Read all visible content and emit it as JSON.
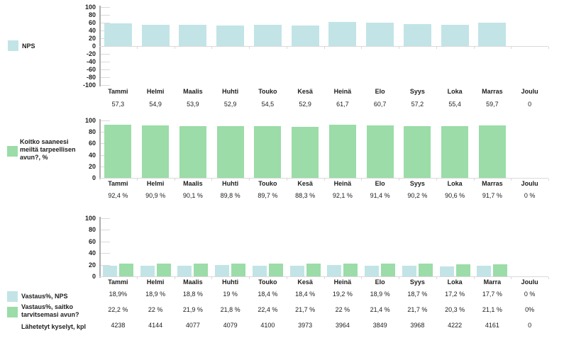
{
  "colors": {
    "teal": "#c2e4e6",
    "green": "#9bdca8",
    "axis": "#aeaeae",
    "grid": "#d9d9d9",
    "text": "#212121"
  },
  "legends": {
    "nps": "NPS",
    "q2_lines": [
      "Koitko saaneesi",
      "meiltä tarpeellisen",
      "avun?, %"
    ],
    "row_nps": "Vastaus%, NPS",
    "row_q2_lines": [
      "Vastaus%, saitko",
      "tarvitsemasi avun?"
    ],
    "row_sent": "Lähetetyt kyselyt, kpl"
  },
  "chart_data": [
    {
      "type": "bar",
      "title": "NPS kuukausittain",
      "ylim": [
        -100,
        100
      ],
      "grid": false,
      "legend_position": "left",
      "y_ticks": [
        "100",
        "80",
        "60",
        "40",
        "20",
        "0",
        "-20",
        "-40",
        "-60",
        "-80",
        "-100"
      ],
      "categories": [
        "Tammi",
        "Helmi",
        "Maalis",
        "Huhti",
        "Touko",
        "Kesä",
        "Heinä",
        "Elo",
        "Syys",
        "Loka",
        "Marras",
        "Joulu"
      ],
      "series": [
        {
          "name": "NPS",
          "color": "teal",
          "values": [
            57.3,
            54.9,
            53.9,
            52.9,
            54.5,
            52.9,
            61.7,
            60.7,
            57.2,
            55.4,
            59.7,
            0
          ],
          "labels": [
            "57,3",
            "54,9",
            "53,9",
            "52,9",
            "54,5",
            "52,9",
            "61,7",
            "60,7",
            "57,2",
            "55,4",
            "59,7",
            "0"
          ]
        }
      ]
    },
    {
      "type": "bar",
      "title": "Koitko saaneesi meiltä tarpeellisen avun?, %",
      "ylim": [
        0,
        100
      ],
      "grid": false,
      "legend_position": "left",
      "y_ticks": [
        "100",
        "80",
        "60",
        "40",
        "20",
        "0"
      ],
      "categories": [
        "Tammi",
        "Helmi",
        "Maalis",
        "Huhti",
        "Touko",
        "Kesä",
        "Heinä",
        "Elo",
        "Syys",
        "Loka",
        "Marras",
        "Joulu"
      ],
      "series": [
        {
          "name": "Koitko saaneesi meiltä tarpeellisen avun?, %",
          "color": "green",
          "values": [
            92.4,
            90.9,
            90.1,
            89.8,
            89.7,
            88.3,
            92.1,
            91.4,
            90.2,
            90.6,
            91.7,
            0
          ],
          "labels": [
            "92,4 %",
            "90,9 %",
            "90,1 %",
            "89,8 %",
            "89,7 %",
            "88,3 %",
            "92,1 %",
            "91,4 %",
            "90,2 %",
            "90,6 %",
            "91,7 %",
            "0 %"
          ]
        }
      ]
    },
    {
      "type": "bar",
      "title": "Vastausprosentit ja lähetetyt kyselyt",
      "ylim": [
        0,
        100
      ],
      "grid": false,
      "legend_position": "left",
      "y_ticks": [
        "100",
        "80",
        "60",
        "40",
        "20",
        "0"
      ],
      "categories": [
        "Tammi",
        "Helmi",
        "Maalis",
        "Huhti",
        "Touko",
        "Kesä",
        "Heinä",
        "Elo",
        "Syys",
        "Loka",
        "Marra",
        "Joulu"
      ],
      "series": [
        {
          "name": "Vastaus%, NPS",
          "color": "teal",
          "values": [
            18.9,
            18.9,
            18.8,
            19,
            18.4,
            18.4,
            19.2,
            18.9,
            18.7,
            17.2,
            17.7,
            0
          ],
          "labels": [
            "18,9%",
            "18,9 %",
            "18,8 %",
            "19 %",
            "18,4 %",
            "18,4 %",
            "19,2 %",
            "18,9 %",
            "18,7 %",
            "17,2 %",
            "17,7 %",
            "0 %"
          ]
        },
        {
          "name": "Vastaus%, saitko tarvitsemasi avun?",
          "color": "green",
          "values": [
            22.2,
            22,
            21.9,
            21.8,
            22.4,
            21.7,
            22,
            21.4,
            21.7,
            20.3,
            21.1,
            0
          ],
          "labels": [
            "22,2 %",
            "22 %",
            "21,9 %",
            "21,8 %",
            "22,4 %",
            "21,7 %",
            "22 %",
            "21,4 %",
            "21,7 %",
            "20,3 %",
            "21,1 %",
            "0%"
          ]
        }
      ],
      "extra_rows": [
        {
          "name": "Lähetetyt kyselyt, kpl",
          "labels": [
            "4238",
            "4144",
            "4077",
            "4079",
            "4100",
            "3973",
            "3964",
            "3849",
            "3968",
            "4222",
            "4161",
            "0"
          ]
        }
      ]
    }
  ]
}
